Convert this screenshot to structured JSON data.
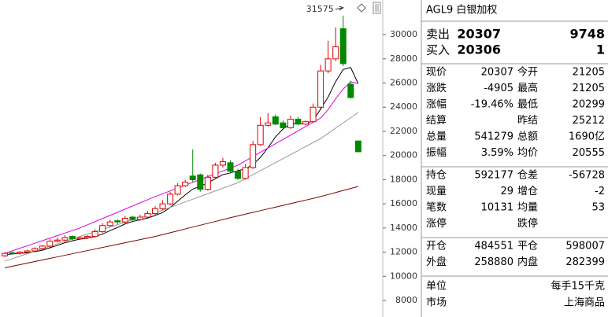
{
  "chart_data": {
    "type": "candlestick",
    "ylim": [
      6633,
      32870
    ],
    "yticks": [
      8000,
      10000,
      12000,
      14000,
      16000,
      18000,
      20000,
      22000,
      24000,
      26000,
      28000,
      30000
    ],
    "up_color": "#e00000",
    "down_color": "#008800",
    "open": [
      11700,
      11950,
      11900,
      12000,
      12100,
      12300,
      12500,
      12900,
      13000,
      13300,
      13100,
      13200,
      13300,
      13700,
      14200,
      14600,
      14500,
      14900,
      14700,
      14900,
      15200,
      15600,
      16000,
      16800,
      17500,
      18300,
      18400,
      17200,
      18200,
      19200,
      19400,
      18700,
      18100,
      19000,
      20900,
      22500,
      23200,
      22700,
      22300,
      23000,
      22600,
      22800,
      24000,
      27000,
      28000,
      30500,
      25900,
      21205
    ],
    "high": [
      12000,
      12050,
      12100,
      12200,
      12400,
      12600,
      13100,
      13200,
      13400,
      13400,
      13300,
      13400,
      13900,
      14400,
      14700,
      14700,
      15000,
      15000,
      15100,
      15400,
      15800,
      16300,
      17000,
      17700,
      18000,
      20500,
      18500,
      18400,
      19400,
      19800,
      19600,
      18900,
      19300,
      21200,
      23200,
      23500,
      23400,
      22900,
      23300,
      23200,
      22900,
      24300,
      27500,
      29500,
      30600,
      31575,
      26200,
      21205
    ],
    "low": [
      11600,
      11800,
      11800,
      11900,
      12000,
      12200,
      12400,
      12800,
      12900,
      13000,
      13000,
      13100,
      13200,
      13600,
      14100,
      14300,
      14400,
      14600,
      14600,
      14800,
      15100,
      15500,
      15900,
      16700,
      17400,
      17800,
      17000,
      17100,
      18100,
      19000,
      18600,
      18000,
      18000,
      18900,
      20800,
      22400,
      22500,
      22100,
      22200,
      22500,
      22500,
      22700,
      23900,
      26800,
      27800,
      27400,
      24700,
      20299
    ],
    "close": [
      11900,
      11900,
      12000,
      12100,
      12300,
      12500,
      12900,
      13000,
      13200,
      13100,
      13200,
      13300,
      13700,
      14200,
      14500,
      14500,
      14800,
      14700,
      14900,
      15200,
      15600,
      16000,
      16800,
      17500,
      17800,
      18000,
      17200,
      18200,
      19200,
      19500,
      18700,
      18100,
      19000,
      20900,
      22500,
      22700,
      22600,
      22300,
      23000,
      22600,
      22800,
      24000,
      27000,
      28000,
      29000,
      27600,
      24800,
      20307
    ],
    "lines": [
      {
        "color": "#000000",
        "values": [
          11800,
          11850,
          11900,
          11950,
          12040,
          12160,
          12360,
          12560,
          12780,
          12940,
          13080,
          13160,
          13300,
          13500,
          13780,
          14040,
          14340,
          14540,
          14680,
          14820,
          15040,
          15280,
          15700,
          16220,
          16740,
          17220,
          17460,
          17740,
          18080,
          18420,
          18560,
          18740,
          18900,
          19240,
          19840,
          20640,
          21540,
          22200,
          22620,
          22640,
          22620,
          22900,
          23840,
          24840,
          26120,
          27120,
          27280,
          25940
        ]
      },
      {
        "color": "#e000e0",
        "values": [
          11900,
          12110,
          12320,
          12530,
          12740,
          12950,
          13160,
          13370,
          13580,
          13790,
          14000,
          14260,
          14520,
          14780,
          15040,
          15300,
          15560,
          15820,
          16080,
          16340,
          16600,
          16836,
          17072,
          17308,
          17544,
          17780,
          18016,
          18252,
          18488,
          18724,
          18960,
          19200,
          19555,
          19910,
          20265,
          20620,
          20975,
          21330,
          21685,
          22040,
          22395,
          22750,
          23100,
          23800,
          24700,
          25500,
          26100,
          25950
        ]
      },
      {
        "color": "#999999",
        "values": [
          11250,
          11455,
          11660,
          11865,
          12070,
          12275,
          12480,
          12685,
          12890,
          13095,
          13300,
          13495,
          13690,
          13885,
          14080,
          14275,
          14470,
          14665,
          14860,
          15055,
          15250,
          15477,
          15704,
          15931,
          16158,
          16385,
          16612,
          16839,
          17066,
          17293,
          17520,
          17750,
          18082,
          18414,
          18746,
          19078,
          19410,
          19742,
          20074,
          20406,
          20738,
          21070,
          21400,
          21832,
          22264,
          22696,
          23128,
          23560
        ]
      },
      {
        "color": "#800000",
        "values": [
          10700,
          10830,
          10960,
          11090,
          11220,
          11350,
          11480,
          11610,
          11740,
          11870,
          12000,
          12130,
          12260,
          12390,
          12520,
          12650,
          12780,
          12910,
          13040,
          13170,
          13300,
          13455,
          13610,
          13765,
          13920,
          14075,
          14230,
          14385,
          14540,
          14695,
          14850,
          15000,
          15145,
          15290,
          15435,
          15580,
          15725,
          15870,
          16015,
          16160,
          16305,
          16450,
          16600,
          16768,
          16936,
          17104,
          17272,
          17440
        ]
      }
    ],
    "max_label": "31575"
  },
  "quote_panel": {
    "title": "AGL9 白银加权",
    "orders": [
      {
        "label": "卖出",
        "price": "20307",
        "volume": "9748"
      },
      {
        "label": "买入",
        "price": "20306",
        "volume": "1"
      }
    ],
    "groups": [
      [
        {
          "l1": "现价",
          "v1": "20307",
          "c1": "#008800",
          "l2": "今开",
          "v2": "21205",
          "c2": "#008800"
        },
        {
          "l1": "涨跌",
          "v1": "-4905",
          "c1": "#008800",
          "l2": "最高",
          "v2": "21205",
          "c2": "#008800"
        },
        {
          "l1": "涨幅",
          "v1": "-19.46%",
          "c1": "#008800",
          "l2": "最低",
          "v2": "20299",
          "c2": "#008800"
        },
        {
          "l1": "结算",
          "v1": null,
          "l2": "昨结",
          "v2": "25212",
          "c2": "#000000"
        },
        {
          "l1": "总量",
          "v1": "541279",
          "c1": "#c86400",
          "l2": "总额",
          "v2": "1690亿",
          "c2": "#008080"
        },
        {
          "l1": "振幅",
          "v1": "3.59%",
          "c1": "#000000",
          "l2": "均价",
          "v2": "20555",
          "c2": "#008800"
        }
      ],
      [
        {
          "l1": "持仓",
          "v1": "592177",
          "c1": "#c86400",
          "l2": "仓差",
          "v2": "-56728",
          "c2": "#008800"
        },
        {
          "l1": "现量",
          "v1": "29",
          "c1": "#c86400",
          "l2": "增仓",
          "v2": "-2",
          "c2": "#008800"
        },
        {
          "l1": "笔数",
          "v1": "10131",
          "c1": "#e00000",
          "l2": "均量",
          "v2": "53",
          "c2": "#e00000"
        },
        {
          "l1": "涨停",
          "v1": null,
          "l2": "跌停",
          "v2": null
        }
      ],
      [
        {
          "l1": "开仓",
          "v1": "484551",
          "c1": "#c86400",
          "l2": "平仓",
          "v2": "598007",
          "c2": "#c86400"
        },
        {
          "l1": "外盘",
          "v1": "258880",
          "c1": "#e00000",
          "l2": "内盘",
          "v2": "282399",
          "c2": "#008800"
        }
      ]
    ],
    "info": [
      {
        "label": "单位",
        "value": "每手15千克"
      },
      {
        "label": "市场",
        "value": "上海商品"
      }
    ]
  }
}
